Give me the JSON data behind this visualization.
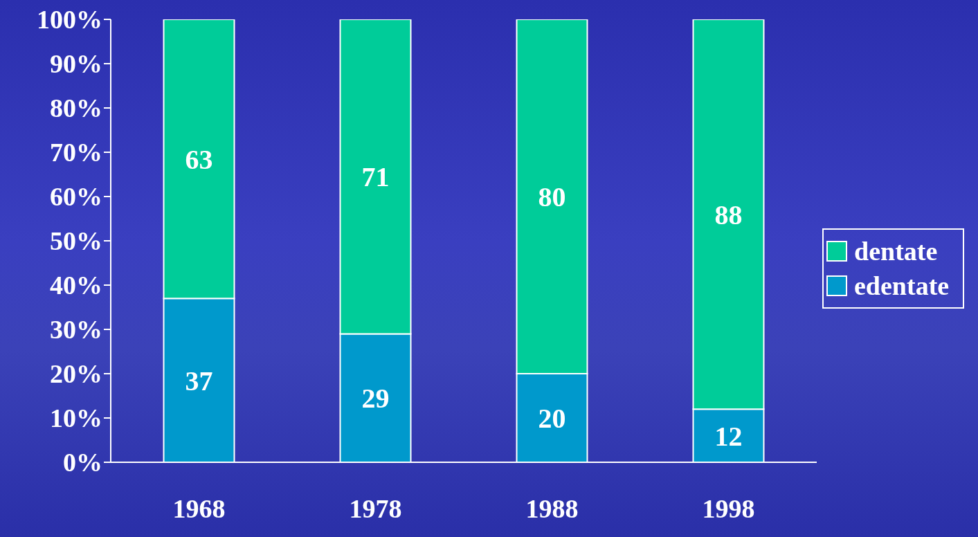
{
  "chart_data": {
    "type": "bar",
    "stacked": true,
    "categories": [
      "1968",
      "1978",
      "1988",
      "1998"
    ],
    "series": [
      {
        "name": "edentate",
        "color": "#0099cc",
        "values": [
          37,
          29,
          20,
          12
        ]
      },
      {
        "name": "dentate",
        "color": "#00cc99",
        "values": [
          63,
          71,
          80,
          88
        ]
      }
    ],
    "ylim": [
      0,
      100
    ],
    "yticks": [
      {
        "value": 0,
        "label": "0%"
      },
      {
        "value": 10,
        "label": "10%"
      },
      {
        "value": 20,
        "label": "20%"
      },
      {
        "value": 30,
        "label": "30%"
      },
      {
        "value": 40,
        "label": "40%"
      },
      {
        "value": 50,
        "label": "50%"
      },
      {
        "value": 60,
        "label": "60%"
      },
      {
        "value": 70,
        "label": "70%"
      },
      {
        "value": 80,
        "label": "80%"
      },
      {
        "value": 90,
        "label": "90%"
      },
      {
        "value": 100,
        "label": "100%"
      }
    ],
    "data_labels": true,
    "grid": false,
    "legend": "right"
  }
}
